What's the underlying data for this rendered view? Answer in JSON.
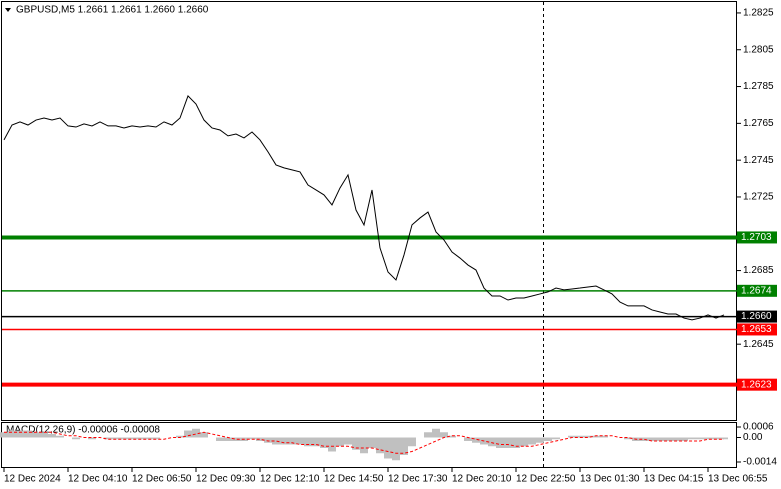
{
  "chart_data": [
    {
      "type": "line",
      "title": "GBPUSD,M5  1.2661 1.2661 1.2660 1.2660",
      "color": "#000000",
      "categories": [
        "12 Dec 2024",
        null,
        null,
        null,
        null,
        null,
        null,
        null,
        "12 Dec 04:10",
        null,
        null,
        null,
        null,
        null,
        null,
        null,
        "12 Dec 06:50",
        null,
        null,
        null,
        null,
        null,
        null,
        null,
        "12 Dec 09:30",
        null,
        null,
        null,
        null,
        null,
        null,
        null,
        "12 Dec 12:10",
        null,
        null,
        null,
        null,
        null,
        null,
        null,
        "12 Dec 14:50",
        null,
        null,
        null,
        null,
        null,
        null,
        null,
        "12 Dec 17:30",
        null,
        null,
        null,
        null,
        null,
        null,
        null,
        "12 Dec 20:10",
        null,
        null,
        null,
        null,
        null,
        null,
        null,
        "12 Dec 22:50",
        null,
        null,
        null,
        null,
        null,
        null,
        null,
        "13 Dec 01:30",
        null,
        null,
        null,
        null,
        null,
        null,
        null,
        "13 Dec 04:15",
        null,
        null,
        null,
        null,
        null,
        null,
        null,
        "13 Dec 06:55",
        null,
        null
      ],
      "values": [
        1.2756,
        1.27641,
        1.27658,
        1.27641,
        1.27668,
        1.27679,
        1.27668,
        1.27679,
        1.27636,
        1.2763,
        1.27647,
        1.27636,
        1.27658,
        1.27636,
        1.27636,
        1.27625,
        1.27636,
        1.2763,
        1.27636,
        1.2763,
        1.27658,
        1.27641,
        1.27679,
        1.27799,
        1.27755,
        1.27668,
        1.27625,
        1.27614,
        1.27582,
        1.27592,
        1.27571,
        1.27603,
        1.2756,
        1.27495,
        1.27424,
        1.27408,
        1.27397,
        1.27386,
        1.27315,
        1.27288,
        1.27261,
        1.27207,
        1.27299,
        1.2737,
        1.27179,
        1.27098,
        1.27288,
        1.26973,
        1.26842,
        1.26799,
        1.26935,
        1.27098,
        1.27136,
        1.27168,
        1.2706,
        1.27016,
        1.26951,
        1.26918,
        1.2688,
        1.26853,
        1.26755,
        1.26712,
        1.26712,
        1.2669,
        1.26701,
        1.26701,
        1.26712,
        1.26723,
        1.26734,
        1.26755,
        1.26745,
        1.2675,
        1.26755,
        1.26761,
        1.26766,
        1.26745,
        1.26723,
        1.26679,
        1.26658,
        1.26658,
        1.26658,
        1.26636,
        1.26625,
        1.26614,
        1.26614,
        1.26592,
        1.26582,
        1.26592,
        1.26609,
        1.26592,
        1.26609
      ],
      "ylim": [
        1.26038,
        1.28304
      ],
      "yticks": [
        1.2825,
        1.2805,
        1.2785,
        1.2765,
        1.2745,
        1.2725,
        1.2685,
        1.2645
      ],
      "grid": false,
      "levels": [
        {
          "value": 1.2703,
          "label": "1.2703",
          "color": "#008000",
          "thick": true
        },
        {
          "value": 1.2674,
          "label": "1.2674",
          "color": "#008000",
          "thick": false
        },
        {
          "value": 1.266,
          "label": "1.2660",
          "color": "#000000",
          "thick": false
        },
        {
          "value": 1.2653,
          "label": "1.2653",
          "color": "#ff0000",
          "thick": false
        },
        {
          "value": 1.2623,
          "label": "1.2623",
          "color": "#ff0000",
          "thick": true
        }
      ]
    },
    {
      "type": "bar",
      "title": "MACD(12,26,9) -0.00006 -0.00008",
      "ylim": [
        -0.0014,
        0.0006
      ],
      "yticks": [
        0.0006,
        {
          "value": 0,
          "label": "0.00"
        },
        -0.0014
      ],
      "series": [
        {
          "type": "bar",
          "color": "#c0c0c0",
          "values": [
            0.0003,
            0.0004,
            0.0004,
            0.0004,
            0.0003,
            0.0003,
            0.0002,
            0.0001,
            0,
            -0.0001,
            0,
            -0.0001,
            0,
            -0.0001,
            -0.0001,
            -0.0001,
            -0.0001,
            -0.0001,
            -0.0001,
            -0.0001,
            0,
            0,
            0.0001,
            0.0004,
            0.0005,
            0.0003,
            0,
            -0.0002,
            -0.0002,
            -0.0002,
            -0.0002,
            -0.0001,
            -0.0002,
            -0.0003,
            -0.0004,
            -0.0004,
            -0.0004,
            -0.0004,
            -0.0005,
            -0.0005,
            -0.0006,
            -0.0008,
            -0.0005,
            -0.0004,
            -0.0007,
            -0.0009,
            -0.0006,
            -0.0009,
            -0.0012,
            -0.0013,
            -0.001,
            -0.0005,
            0,
            0.0003,
            0.0005,
            0.0003,
            0.0001,
            0,
            -0.0002,
            -0.0003,
            -0.0004,
            -0.0005,
            -0.0006,
            -0.0006,
            -0.0006,
            -0.0005,
            -0.0004,
            -0.0003,
            -0.0002,
            -0.0001,
            0,
            0.0001,
            0.0001,
            0.0001,
            0.0001,
            0.0001,
            0,
            0,
            -0.0001,
            -0.0002,
            -0.0002,
            -0.0002,
            -0.0002,
            -0.0002,
            -0.0002,
            -0.0002,
            -0.0001,
            -0.0001,
            -0.0001,
            -0.0001,
            -0.0001
          ]
        },
        {
          "type": "line",
          "color": "#ff0000",
          "values": [
            0.0003,
            0.0003,
            0.0003,
            0.0003,
            0.0003,
            0.0003,
            0.0003,
            0.0002,
            0.0001,
            0.0001,
            0,
            0,
            0,
            -0.0001,
            -0.0001,
            -0.0001,
            -0.0001,
            -0.0001,
            -0.0001,
            -0.0001,
            -0.0001,
            0,
            0,
            0.0001,
            0.0002,
            0.0003,
            0.0002,
            0.0001,
            0,
            -0.0001,
            -0.0001,
            -0.0001,
            -0.0001,
            -0.0002,
            -0.0002,
            -0.0003,
            -0.0003,
            -0.0004,
            -0.0004,
            -0.0004,
            -0.0005,
            -0.0005,
            -0.0005,
            -0.0005,
            -0.0006,
            -0.0006,
            -0.0006,
            -0.0007,
            -0.0008,
            -0.0009,
            -0.0009,
            -0.0008,
            -0.0006,
            -0.0004,
            -0.0002,
            0,
            0.0001,
            0.0001,
            0,
            -0.0001,
            -0.0002,
            -0.0003,
            -0.0004,
            -0.0004,
            -0.0005,
            -0.0005,
            -0.0005,
            -0.0004,
            -0.0003,
            -0.0002,
            -0.0001,
            0,
            0,
            0,
            0.0001,
            0.0001,
            0.0001,
            0,
            0,
            -0.0001,
            -0.0001,
            -0.0002,
            -0.0002,
            -0.0002,
            -0.0002,
            -0.0002,
            -0.0002,
            -0.0002,
            -0.0001,
            -0.0001,
            -0.0001
          ]
        }
      ]
    }
  ]
}
